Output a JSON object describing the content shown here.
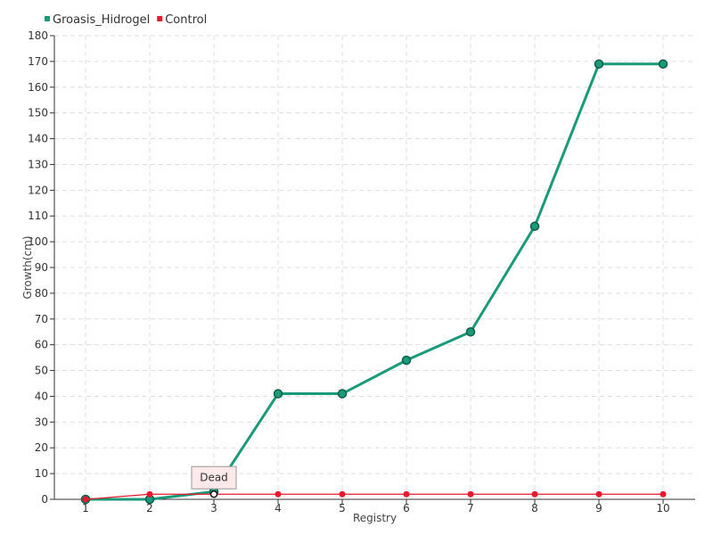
{
  "chart_data": {
    "type": "line",
    "title": "",
    "xlabel": "Registry",
    "ylabel": "Growth(cm)",
    "categories": [
      "1",
      "2",
      "3",
      "4",
      "5",
      "6",
      "7",
      "8",
      "9",
      "10"
    ],
    "ylim": [
      0,
      180
    ],
    "ytick_step": 10,
    "grid": true,
    "legend_position": "top-left",
    "series": [
      {
        "name": "Groasis_Hidrogel",
        "color": "#1a9a78",
        "values": [
          0,
          0,
          3,
          41,
          41,
          54,
          65,
          106,
          169,
          169
        ]
      },
      {
        "name": "Control",
        "color": "#e8192c",
        "values": [
          0,
          2,
          2,
          2,
          2,
          2,
          2,
          2,
          2,
          2
        ]
      }
    ],
    "annotation": {
      "text": "Dead",
      "category": "3",
      "series": "Control"
    }
  }
}
